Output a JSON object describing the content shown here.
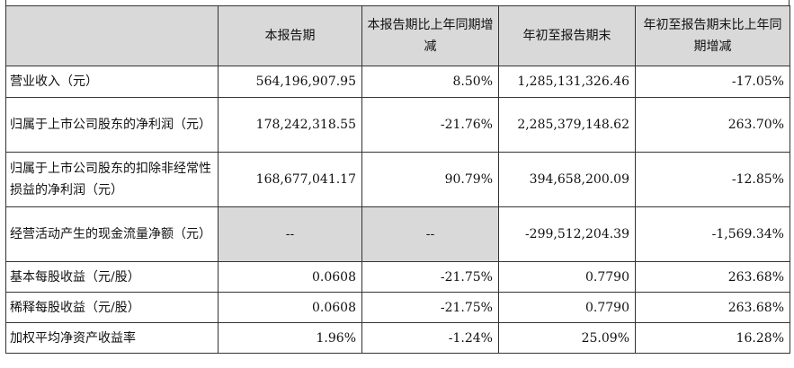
{
  "table": {
    "headers": [
      "",
      "本报告期",
      "本报告期比上年同期增减",
      "年初至报告期末",
      "年初至报告期末比上年同期增减"
    ],
    "rows": [
      {
        "label": "营业收入（元）",
        "cells": [
          "564,196,907.95",
          "8.50%",
          "1,285,131,326.46",
          "-17.05%"
        ]
      },
      {
        "label": "归属于上市公司股东的净利润（元）",
        "cells": [
          "178,242,318.55",
          "-21.76%",
          "2,285,379,148.62",
          "263.70%"
        ]
      },
      {
        "label": "归属于上市公司股东的扣除非经常性损益的净利润（元）",
        "cells": [
          "168,677,041.17",
          "90.79%",
          "394,658,200.09",
          "-12.85%"
        ]
      },
      {
        "label": "经营活动产生的现金流量净额（元）",
        "cells": [
          "--",
          "--",
          "-299,512,204.39",
          "-1,569.34%"
        ]
      },
      {
        "label": "基本每股收益（元/股）",
        "cells": [
          "0.0608",
          "-21.75%",
          "0.7790",
          "263.68%"
        ]
      },
      {
        "label": "稀释每股收益（元/股）",
        "cells": [
          "0.0608",
          "-21.75%",
          "0.7790",
          "263.68%"
        ]
      },
      {
        "label": "加权平均净资产收益率",
        "cells": [
          "1.96%",
          "-1.24%",
          "25.09%",
          "16.28%"
        ]
      }
    ]
  }
}
